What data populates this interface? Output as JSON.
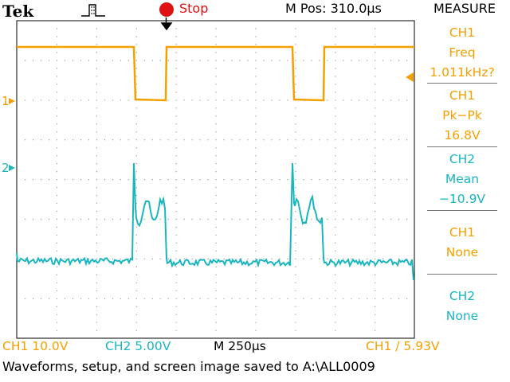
{
  "header": {
    "brand": "Tek",
    "run_state": "Stop",
    "position": "M Pos: 310.0µs",
    "measure_title": "MEASURE"
  },
  "measurements": [
    {
      "channel": "CH1",
      "label": "Freq",
      "value": "1.011kHz?",
      "color": "#f5a000"
    },
    {
      "channel": "CH1",
      "label": "Pk−Pk",
      "value": "16.8V",
      "color": "#f5a000"
    },
    {
      "channel": "CH2",
      "label": "Mean",
      "value": "−10.9V",
      "color": "#19b6c0"
    },
    {
      "channel": "CH1",
      "label": "None",
      "value": "",
      "color": "#f5a000"
    },
    {
      "channel": "CH2",
      "label": "None",
      "value": "",
      "color": "#19b6c0"
    }
  ],
  "markers": {
    "ch1": "1",
    "ch2": "2"
  },
  "status": {
    "ch1_scale": "CH1  10.0V",
    "ch2_scale": "CH2  5.00V",
    "timebase": "M 250µs",
    "trigger": "CH1 ∕ 5.93V"
  },
  "message": "Waveforms, setup, and screen image saved to A:\\ALL0009",
  "colors": {
    "ch1": "#f5a000",
    "ch2": "#19b6c0",
    "run_state": "#d11111"
  },
  "icons": [
    "trigger-pulse-icon",
    "run-state-dot-icon",
    "trigger-position-arrow-icon",
    "trigger-level-arrow-icon"
  ]
}
